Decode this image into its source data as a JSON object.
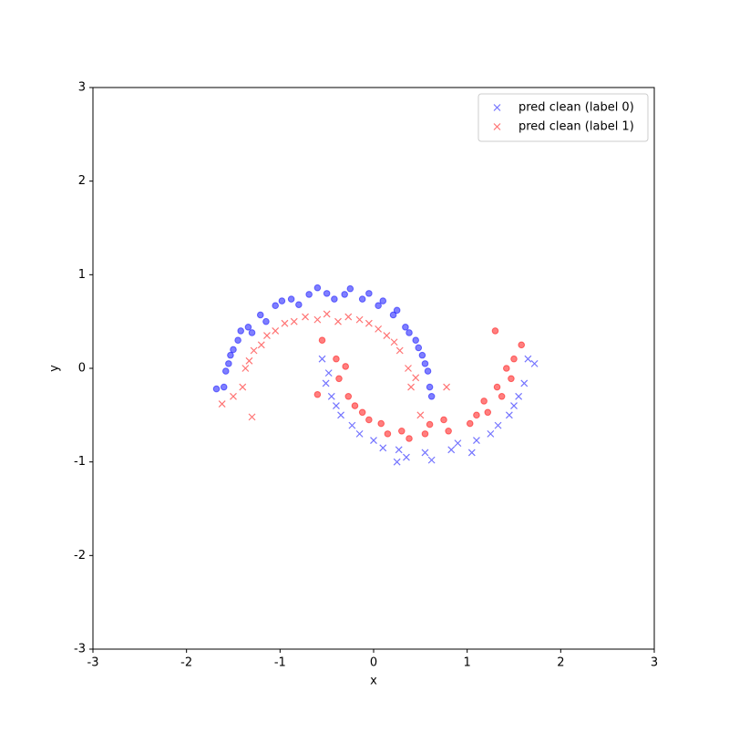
{
  "chart_data": {
    "type": "scatter",
    "xlabel": "x",
    "ylabel": "y",
    "xlim": [
      -3,
      3
    ],
    "ylim": [
      -3,
      3
    ],
    "xticks": [
      -3,
      -2,
      -1,
      0,
      1,
      2,
      3
    ],
    "yticks": [
      -3,
      -2,
      -1,
      0,
      1,
      2,
      3
    ],
    "legend": "upper right",
    "series": [
      {
        "color": "#0000ff",
        "marker": "o",
        "x": [
          0.6,
          0.62,
          0.58,
          0.52,
          0.55,
          0.45,
          0.48,
          0.34,
          0.38,
          0.21,
          0.25,
          0.05,
          0.1,
          -0.12,
          -0.05,
          -0.31,
          -0.25,
          -0.5,
          -0.42,
          -0.69,
          -0.6,
          -0.88,
          -0.8,
          -1.05,
          -0.98,
          -1.21,
          -1.15,
          -1.34,
          -1.3,
          -1.45,
          -1.42,
          -1.53,
          -1.5,
          -1.58,
          -1.55,
          -1.6,
          -1.68
        ],
        "values": [
          -0.2,
          -0.3,
          -0.03,
          0.14,
          0.05,
          0.3,
          0.22,
          0.44,
          0.38,
          0.57,
          0.62,
          0.67,
          0.72,
          0.74,
          0.8,
          0.79,
          0.85,
          0.8,
          0.74,
          0.79,
          0.86,
          0.74,
          0.68,
          0.67,
          0.72,
          0.57,
          0.5,
          0.44,
          0.38,
          0.3,
          0.4,
          0.14,
          0.2,
          -0.03,
          0.05,
          -0.2,
          -0.22
        ]
      },
      {
        "color": "#ff0000",
        "marker": "o",
        "x": [
          -0.4,
          -0.55,
          -0.37,
          -0.3,
          -0.27,
          -0.2,
          -0.12,
          -0.05,
          0.08,
          0.15,
          0.3,
          0.38,
          0.55,
          0.6,
          0.8,
          0.75,
          1.03,
          1.1,
          1.22,
          1.18,
          1.37,
          1.32,
          1.47,
          1.42,
          1.5,
          1.58,
          1.3,
          -0.6
        ],
        "values": [
          0.1,
          0.3,
          -0.11,
          0.02,
          -0.3,
          -0.4,
          -0.47,
          -0.55,
          -0.59,
          -0.7,
          -0.67,
          -0.75,
          -0.7,
          -0.6,
          -0.67,
          -0.55,
          -0.59,
          -0.5,
          -0.47,
          -0.35,
          -0.3,
          -0.2,
          -0.11,
          0.0,
          0.1,
          0.25,
          0.4,
          -0.28
        ]
      },
      {
        "name": "pred clean (label 0)",
        "color": "#0000ff",
        "marker": "x",
        "x": [
          -0.55,
          -0.48,
          -0.51,
          -0.45,
          -0.4,
          -0.35,
          -0.23,
          -0.15,
          0.0,
          0.1,
          0.27,
          0.35,
          0.55,
          0.62,
          0.83,
          0.9,
          1.1,
          1.05,
          1.33,
          1.25,
          1.5,
          1.45,
          1.61,
          1.55,
          1.65,
          1.72,
          0.25
        ],
        "values": [
          0.1,
          -0.05,
          -0.16,
          -0.3,
          -0.4,
          -0.5,
          -0.61,
          -0.7,
          -0.77,
          -0.85,
          -0.87,
          -0.95,
          -0.9,
          -0.98,
          -0.87,
          -0.8,
          -0.77,
          -0.9,
          -0.61,
          -0.7,
          -0.4,
          -0.5,
          -0.16,
          -0.3,
          0.1,
          0.05,
          -1.0
        ]
      },
      {
        "name": "pred clean (label 1)",
        "color": "#ff0000",
        "marker": "x",
        "x": [
          0.4,
          0.5,
          0.37,
          0.45,
          0.28,
          0.22,
          0.14,
          0.05,
          -0.05,
          -0.15,
          -0.27,
          -0.38,
          -0.5,
          -0.6,
          -0.73,
          -0.85,
          -0.95,
          -1.05,
          -1.14,
          -1.2,
          -1.28,
          -1.33,
          -1.37,
          -1.4,
          -1.5,
          -1.62,
          -1.3,
          0.78
        ],
        "values": [
          -0.2,
          -0.5,
          0.0,
          -0.1,
          0.19,
          0.28,
          0.35,
          0.42,
          0.48,
          0.52,
          0.55,
          0.5,
          0.58,
          0.52,
          0.55,
          0.5,
          0.48,
          0.4,
          0.35,
          0.25,
          0.19,
          0.08,
          0.0,
          -0.2,
          -0.3,
          -0.38,
          -0.52,
          -0.2
        ]
      }
    ]
  }
}
